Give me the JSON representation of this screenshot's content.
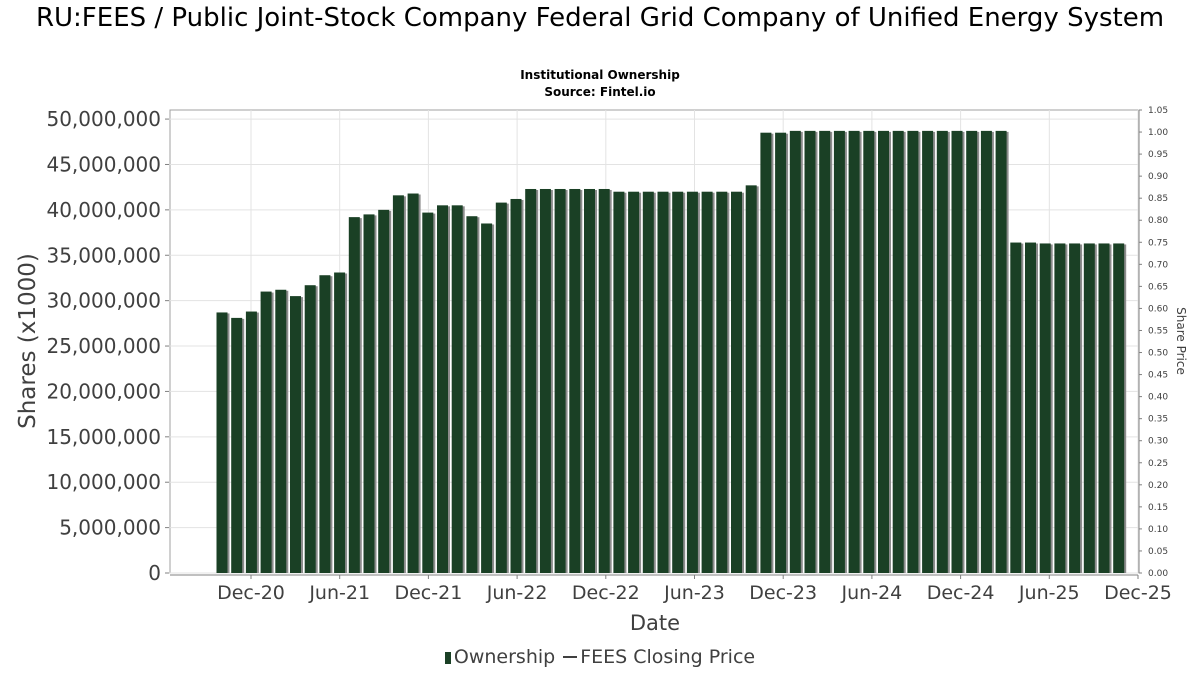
{
  "chart_data": {
    "type": "bar",
    "title": "RU:FEES / Public Joint-Stock Company Federal Grid Company of Unified Energy System",
    "subtitle": "Institutional Ownership",
    "source": "Source: Fintel.io",
    "xlabel": "Date",
    "ylabel": "Shares (x1000)",
    "y2label": "Share Price",
    "ylim": [
      0,
      51000000
    ],
    "y2lim": [
      0,
      1.05
    ],
    "yticks": [
      "0",
      "5,000,000",
      "10,000,000",
      "15,000,000",
      "20,000,000",
      "25,000,000",
      "30,000,000",
      "35,000,000",
      "40,000,000",
      "45,000,000",
      "50,000,000"
    ],
    "y2ticks": [
      "0.00",
      "0.05",
      "0.10",
      "0.15",
      "0.20",
      "0.25",
      "0.30",
      "0.35",
      "0.40",
      "0.45",
      "0.50",
      "0.55",
      "0.60",
      "0.65",
      "0.70",
      "0.75",
      "0.80",
      "0.85",
      "0.90",
      "0.95",
      "1.00",
      "1.05"
    ],
    "xticks": [
      "Dec-20",
      "Jun-21",
      "Dec-21",
      "Jun-22",
      "Dec-22",
      "Jun-23",
      "Dec-23",
      "Jun-24",
      "Dec-24",
      "Jun-25",
      "Dec-25"
    ],
    "grid": true,
    "legend_position": "bottom",
    "series": [
      {
        "name": "Ownership",
        "color": "#1a4025",
        "values": [
          28700000,
          28100000,
          28800000,
          31000000,
          31200000,
          30500000,
          31700000,
          32800000,
          33100000,
          39200000,
          39500000,
          40000000,
          41600000,
          41800000,
          39700000,
          40500000,
          40500000,
          39300000,
          38500000,
          40800000,
          41200000,
          42300000,
          42300000,
          42300000,
          42300000,
          42300000,
          42300000,
          42000000,
          42000000,
          42000000,
          42000000,
          42000000,
          42000000,
          42000000,
          42000000,
          42000000,
          42700000,
          48500000,
          48500000,
          48700000,
          48700000,
          48700000,
          48700000,
          48700000,
          48700000,
          48700000,
          48700000,
          48700000,
          48700000,
          48700000,
          48700000,
          48700000,
          48700000,
          48700000,
          36400000,
          36400000,
          36300000,
          36300000,
          36300000,
          36300000,
          36300000,
          36300000
        ]
      },
      {
        "name": "FEES Closing Price",
        "color": "#404040",
        "values": []
      }
    ]
  },
  "legend": {
    "ownership": "Ownership",
    "price": "FEES Closing Price"
  }
}
